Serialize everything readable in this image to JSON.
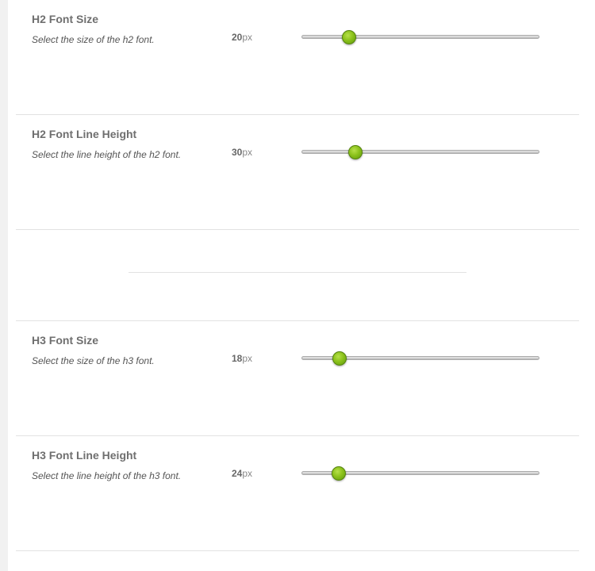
{
  "settings": [
    {
      "title": "H2 Font Size",
      "description": "Select the size of the h2 font.",
      "value": "20",
      "unit": "px",
      "level": 0.2
    },
    {
      "title": "H2 Font Line Height",
      "description": "Select the line height of the h2 font.",
      "value": "30",
      "unit": "px",
      "level": 0.225
    },
    {
      "title": "H3 Font Size",
      "description": "Select the size of the h3 font.",
      "value": "18",
      "unit": "px",
      "level": 0.16
    },
    {
      "title": "H3 Font Line Height",
      "description": "Select the line height of the h3 font.",
      "value": "24",
      "unit": "px",
      "level": 0.155
    }
  ],
  "colors": {
    "handle": "#8cc21c",
    "track": "#c8c8c8",
    "divider": "#e2e2e2"
  }
}
